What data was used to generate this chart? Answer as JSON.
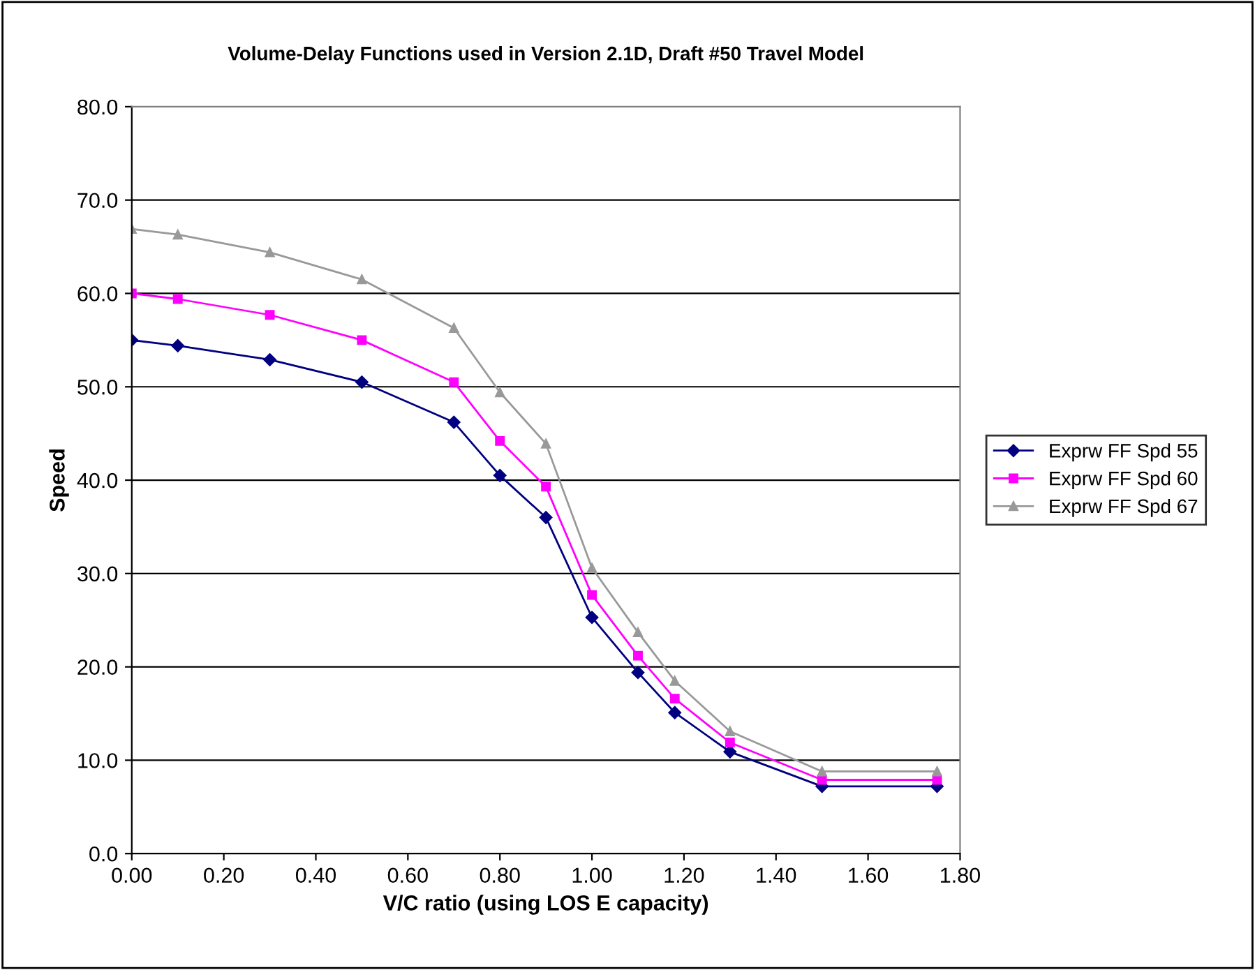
{
  "chart_data": {
    "type": "line",
    "title": "Volume-Delay Functions used in Version 2.1D, Draft #50 Travel Model",
    "xlabel": "V/C ratio (using LOS E capacity)",
    "ylabel": "Speed",
    "x": [
      0,
      0.1,
      0.3,
      0.5,
      0.7,
      0.8,
      0.9,
      1.0,
      1.1,
      1.18,
      1.3,
      1.5,
      1.75
    ],
    "series": [
      {
        "name": "Exprw FF Spd 55",
        "color": "#000080",
        "marker": "diamond",
        "values": [
          55.0,
          54.4,
          52.9,
          50.5,
          46.2,
          40.5,
          36.0,
          25.3,
          19.4,
          15.1,
          10.9,
          7.2,
          7.2
        ]
      },
      {
        "name": "Exprw FF Spd 60",
        "color": "#ff00ff",
        "marker": "square",
        "values": [
          60.0,
          59.4,
          57.7,
          55.0,
          50.5,
          44.2,
          39.3,
          27.7,
          21.2,
          16.6,
          11.9,
          7.9,
          7.9
        ]
      },
      {
        "name": "Exprw FF Spd 67",
        "color": "#999999",
        "marker": "triangle",
        "values": [
          66.9,
          66.3,
          64.4,
          61.5,
          56.3,
          49.4,
          43.9,
          30.6,
          23.7,
          18.5,
          13.1,
          8.8,
          8.8
        ]
      }
    ],
    "xlim": [
      0,
      1.8
    ],
    "xticks": [
      {
        "value": 0,
        "label": "0.00"
      },
      {
        "value": 0.2,
        "label": "0.20"
      },
      {
        "value": 0.4,
        "label": "0.40"
      },
      {
        "value": 0.6,
        "label": "0.60"
      },
      {
        "value": 0.8,
        "label": "0.80"
      },
      {
        "value": 1.0,
        "label": "1.00"
      },
      {
        "value": 1.2,
        "label": "1.20"
      },
      {
        "value": 1.4,
        "label": "1.40"
      },
      {
        "value": 1.6,
        "label": "1.60"
      },
      {
        "value": 1.8,
        "label": "1.80"
      }
    ],
    "ylim": [
      0,
      80
    ],
    "yticks": [
      {
        "value": 0,
        "label": "0.0"
      },
      {
        "value": 10,
        "label": "10.0"
      },
      {
        "value": 20,
        "label": "20.0"
      },
      {
        "value": 30,
        "label": "30.0"
      },
      {
        "value": 40,
        "label": "40.0"
      },
      {
        "value": 50,
        "label": "50.0"
      },
      {
        "value": 60,
        "label": "60.0"
      },
      {
        "value": 70,
        "label": "70.0"
      },
      {
        "value": 80,
        "label": "80.0"
      }
    ],
    "grid": "y",
    "legend": "right",
    "line_style": "solid"
  }
}
